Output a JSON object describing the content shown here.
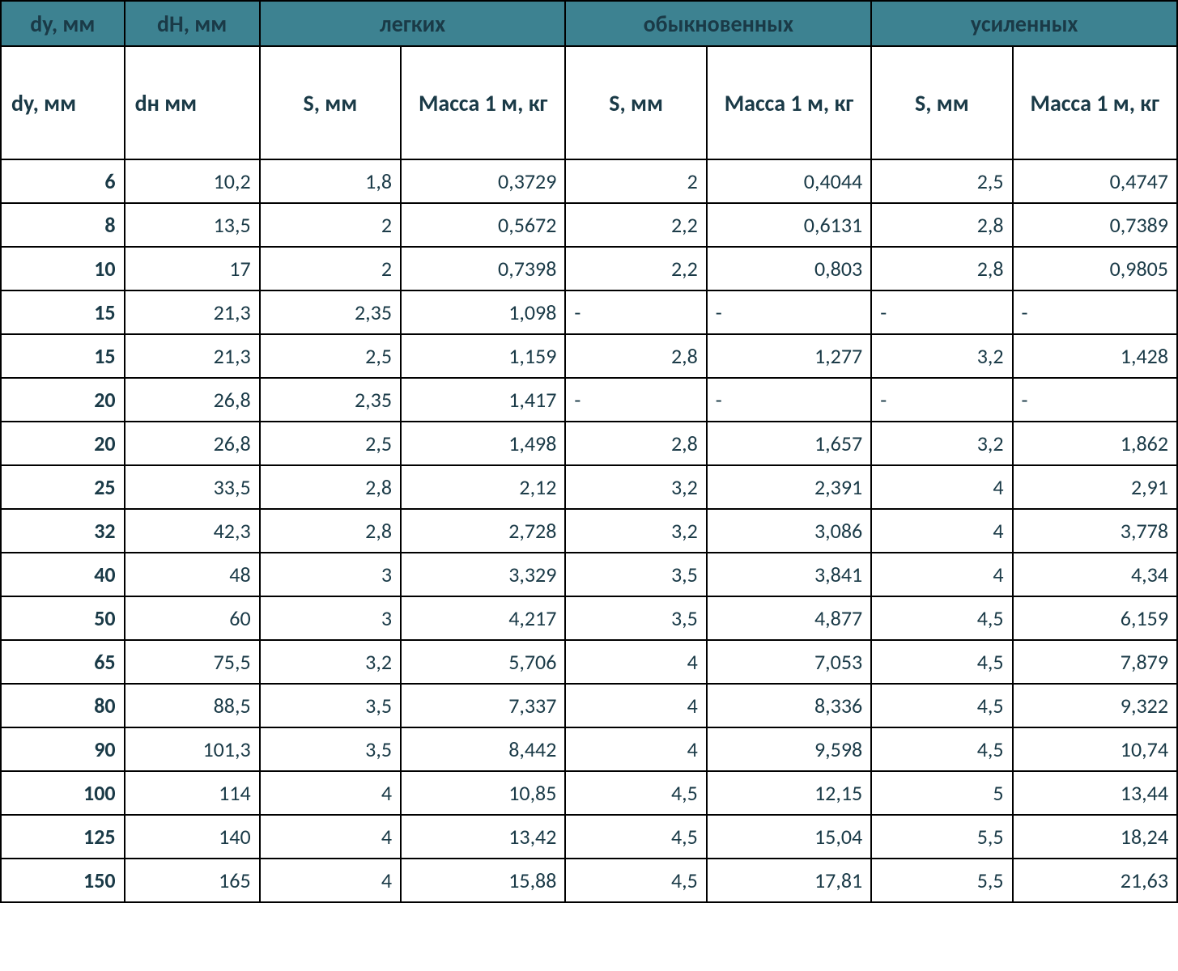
{
  "table": {
    "group_headers": {
      "dy": "dy, мм",
      "dn": "dH, мм",
      "light": "легких",
      "ordinary": "обыкновенных",
      "reinforced": "усиленных"
    },
    "sub_headers": {
      "dy": "dy, мм",
      "dn": "dн мм",
      "s": "S, мм",
      "mass": "Масса 1 м, кг"
    },
    "colors": {
      "header_bg": "#3d8291",
      "text": "#1a3a47",
      "border": "#000000",
      "body_bg": "#ffffff"
    },
    "fontsize": {
      "header": 28,
      "body": 26
    },
    "col_widths_pct": {
      "dy": 10.5,
      "dn": 11.5,
      "s": 12,
      "mass": 14
    },
    "rows": [
      {
        "dy": "6",
        "dn": "10,2",
        "ls": "1,8",
        "lm": "0,3729",
        "os": "2",
        "om": "0,4044",
        "rs": "2,5",
        "rm": "0,4747"
      },
      {
        "dy": "8",
        "dn": "13,5",
        "ls": "2",
        "lm": "0,5672",
        "os": "2,2",
        "om": "0,6131",
        "rs": "2,8",
        "rm": "0,7389"
      },
      {
        "dy": "10",
        "dn": "17",
        "ls": "2",
        "lm": "0,7398",
        "os": "2,2",
        "om": "0,803",
        "rs": "2,8",
        "rm": "0,9805"
      },
      {
        "dy": "15",
        "dn": "21,3",
        "ls": "2,35",
        "lm": "1,098",
        "os": "-",
        "om": "-",
        "rs": "-",
        "rm": "-"
      },
      {
        "dy": "15",
        "dn": "21,3",
        "ls": "2,5",
        "lm": "1,159",
        "os": "2,8",
        "om": "1,277",
        "rs": "3,2",
        "rm": "1,428"
      },
      {
        "dy": "20",
        "dn": "26,8",
        "ls": "2,35",
        "lm": "1,417",
        "os": "-",
        "om": "-",
        "rs": "-",
        "rm": "-"
      },
      {
        "dy": "20",
        "dn": "26,8",
        "ls": "2,5",
        "lm": "1,498",
        "os": "2,8",
        "om": "1,657",
        "rs": "3,2",
        "rm": "1,862"
      },
      {
        "dy": "25",
        "dn": "33,5",
        "ls": "2,8",
        "lm": "2,12",
        "os": "3,2",
        "om": "2,391",
        "rs": "4",
        "rm": "2,91"
      },
      {
        "dy": "32",
        "dn": "42,3",
        "ls": "2,8",
        "lm": "2,728",
        "os": "3,2",
        "om": "3,086",
        "rs": "4",
        "rm": "3,778"
      },
      {
        "dy": "40",
        "dn": "48",
        "ls": "3",
        "lm": "3,329",
        "os": "3,5",
        "om": "3,841",
        "rs": "4",
        "rm": "4,34"
      },
      {
        "dy": "50",
        "dn": "60",
        "ls": "3",
        "lm": "4,217",
        "os": "3,5",
        "om": "4,877",
        "rs": "4,5",
        "rm": "6,159"
      },
      {
        "dy": "65",
        "dn": "75,5",
        "ls": "3,2",
        "lm": "5,706",
        "os": "4",
        "om": "7,053",
        "rs": "4,5",
        "rm": "7,879"
      },
      {
        "dy": "80",
        "dn": "88,5",
        "ls": "3,5",
        "lm": "7,337",
        "os": "4",
        "om": "8,336",
        "rs": "4,5",
        "rm": "9,322"
      },
      {
        "dy": "90",
        "dn": "101,3",
        "ls": "3,5",
        "lm": "8,442",
        "os": "4",
        "om": "9,598",
        "rs": "4,5",
        "rm": "10,74"
      },
      {
        "dy": "100",
        "dn": "114",
        "ls": "4",
        "lm": "10,85",
        "os": "4,5",
        "om": "12,15",
        "rs": "5",
        "rm": "13,44"
      },
      {
        "dy": "125",
        "dn": "140",
        "ls": "4",
        "lm": "13,42",
        "os": "4,5",
        "om": "15,04",
        "rs": "5,5",
        "rm": "18,24"
      },
      {
        "dy": "150",
        "dn": "165",
        "ls": "4",
        "lm": "15,88",
        "os": "4,5",
        "om": "17,81",
        "rs": "5,5",
        "rm": "21,63"
      }
    ]
  }
}
